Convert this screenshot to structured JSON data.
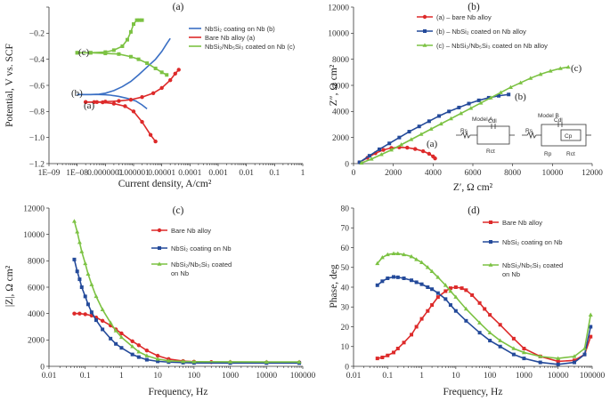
{
  "chart_data": [
    {
      "id": "a",
      "type": "line",
      "panel_label": "(a)",
      "xlabel": "Current density, A/cm²",
      "ylabel": "Potential, V vs. SCF",
      "xscale": "log",
      "xlim": [
        1e-09,
        1
      ],
      "ylim": [
        -1.2,
        0
      ],
      "xticks": [
        1e-09,
        1e-08,
        1e-07,
        1e-06,
        1e-05,
        0.0001,
        0.001,
        0.01,
        0.1,
        1
      ],
      "xtick_labels": [
        "1E–09",
        "1E–08",
        "0.0000001",
        "0.000001",
        "0.00001",
        "0.0001",
        "0.001",
        "0.01",
        "0.1",
        "1"
      ],
      "yticks": [
        -1.2,
        -1.0,
        -0.8,
        -0.6,
        -0.4,
        -0.2,
        0
      ],
      "ytick_labels": [
        "−1.2",
        "−1.0",
        "−0.8",
        "−0.6",
        "−0.4",
        "−0.2",
        ""
      ],
      "annotations": [
        "(c)",
        "(b)",
        "(a)"
      ],
      "legend": "top-right",
      "series": [
        {
          "name": "NbSi₂ coating on Nb (b)",
          "color": "#3a6fc4",
          "marker": "none",
          "x": [
            3e-06,
            2e-06,
            1.2e-06,
            6e-07,
            3e-07,
            1.5e-07,
            1e-07,
            6e-08,
            3e-08,
            1e-08
          ],
          "y": [
            -0.78,
            -0.75,
            -0.72,
            -0.7,
            -0.685,
            -0.675,
            -0.672,
            -0.67,
            -0.67,
            -0.67
          ],
          "x2": [
            1e-08,
            3e-08,
            6e-08,
            1e-07,
            2e-07,
            4e-07,
            8e-07,
            1.5e-06,
            3e-06,
            6e-06,
            1e-05,
            1.5e-05,
            2e-05
          ],
          "y2": [
            -0.67,
            -0.67,
            -0.668,
            -0.66,
            -0.64,
            -0.61,
            -0.57,
            -0.52,
            -0.46,
            -0.4,
            -0.34,
            -0.28,
            -0.24
          ]
        },
        {
          "name": "Bare Nb alloy (a)",
          "color": "#dd2a2a",
          "marker": "circle",
          "x": [
            6e-06,
            4e-06,
            2e-06,
            1e-06,
            5e-07,
            2e-07,
            8e-08,
            4e-08,
            2e-08
          ],
          "y": [
            -1.03,
            -0.98,
            -0.88,
            -0.8,
            -0.76,
            -0.74,
            -0.73,
            -0.728,
            -0.728
          ],
          "x2": [
            2e-08,
            5e-08,
            1e-07,
            3e-07,
            8e-07,
            2e-06,
            5e-06,
            1e-05,
            2e-05,
            3e-05,
            4e-05
          ],
          "y2": [
            -0.728,
            -0.728,
            -0.725,
            -0.72,
            -0.71,
            -0.69,
            -0.66,
            -0.62,
            -0.56,
            -0.51,
            -0.48
          ]
        },
        {
          "name": "NbSi₂/Nb₅Si₃ coated on Nb (c)",
          "color": "#7cc243",
          "marker": "square",
          "x": [
            1.5e-05,
            1e-05,
            6e-06,
            3e-06,
            1.5e-06,
            8e-07,
            3e-07,
            1e-07,
            3e-08,
            1e-08
          ],
          "y": [
            -0.52,
            -0.5,
            -0.47,
            -0.43,
            -0.4,
            -0.38,
            -0.36,
            -0.355,
            -0.35,
            -0.35
          ],
          "x2": [
            1e-08,
            3e-08,
            1e-07,
            2e-07,
            4e-07,
            6e-07,
            8e-07,
            1e-06,
            1.3e-06,
            1.6e-06,
            2e-06
          ],
          "y2": [
            -0.35,
            -0.35,
            -0.345,
            -0.33,
            -0.3,
            -0.25,
            -0.19,
            -0.13,
            -0.1,
            -0.1,
            -0.1
          ]
        }
      ]
    },
    {
      "id": "b",
      "type": "line",
      "panel_label": "(b)",
      "xlabel": "Z′, Ω cm²",
      "ylabel": "Z″, Ω cm²",
      "xlim": [
        0,
        12000
      ],
      "ylim": [
        0,
        12000
      ],
      "xticks": [
        0,
        2000,
        4000,
        6000,
        8000,
        10000,
        12000
      ],
      "yticks": [
        0,
        2000,
        4000,
        6000,
        8000,
        10000,
        12000
      ],
      "annotations": [
        "(a)",
        "(b)",
        "(c)"
      ],
      "legend": "top",
      "circuit": {
        "model_a": "Model A",
        "model_b": "Model B",
        "labels": [
          "Rs",
          "Cdl",
          "Rct",
          "Rs",
          "Cp",
          "Cdl",
          "Rp",
          "Rct"
        ]
      },
      "series": [
        {
          "name": "(a) – bare Nb alloy",
          "color": "#dd2a2a",
          "marker": "circle",
          "x": [
            300,
            700,
            1100,
            1500,
            1900,
            2300,
            2700,
            3100,
            3500,
            3800,
            4000,
            4100
          ],
          "y": [
            100,
            450,
            800,
            1050,
            1200,
            1250,
            1220,
            1120,
            950,
            750,
            550,
            400
          ]
        },
        {
          "name": "(b) – NbSi₂ coated on Nb alloy",
          "color": "#244a9a",
          "marker": "square",
          "x": [
            300,
            800,
            1300,
            1800,
            2300,
            2800,
            3300,
            3800,
            4300,
            4800,
            5300,
            5800,
            6300,
            6800,
            7300,
            7800
          ],
          "y": [
            100,
            600,
            1100,
            1550,
            2000,
            2450,
            2850,
            3250,
            3650,
            4000,
            4300,
            4600,
            4850,
            5050,
            5200,
            5300
          ]
        },
        {
          "name": "(c) – NbSi₂/Nb₅Si₃ coated on Nb alloy",
          "color": "#7cc243",
          "marker": "triangle",
          "x": [
            400,
            900,
            1400,
            1900,
            2400,
            2900,
            3400,
            3900,
            4400,
            4900,
            5400,
            5900,
            6400,
            6900,
            7400,
            7900,
            8400,
            8900,
            9400,
            9900,
            10400,
            10800
          ],
          "y": [
            50,
            350,
            700,
            1050,
            1450,
            1850,
            2250,
            2650,
            3050,
            3450,
            3850,
            4250,
            4650,
            5050,
            5450,
            5850,
            6200,
            6550,
            6850,
            7100,
            7300,
            7400
          ]
        }
      ]
    },
    {
      "id": "c",
      "type": "line",
      "panel_label": "(c)",
      "xlabel": "Frequency, Hz",
      "ylabel": "|Z|, Ω cm²",
      "xscale": "log",
      "xlim": [
        0.01,
        100000
      ],
      "ylim": [
        0,
        12000
      ],
      "xticks": [
        0.01,
        0.1,
        1,
        10,
        100,
        1000,
        10000,
        100000
      ],
      "xtick_labels": [
        "0.01",
        "0.1",
        "1",
        "10",
        "100",
        "1000",
        "10000",
        "100000"
      ],
      "yticks": [
        0,
        2000,
        4000,
        6000,
        8000,
        10000,
        12000
      ],
      "legend": "top-right",
      "series": [
        {
          "name": "Bare Nb alloy",
          "color": "#dd2a2a",
          "marker": "circle",
          "x": [
            0.05,
            0.07,
            0.1,
            0.15,
            0.2,
            0.3,
            0.5,
            0.7,
            1,
            2,
            3,
            5,
            10,
            20,
            50,
            100,
            300,
            1000,
            10000,
            80000
          ],
          "y": [
            4000,
            4000,
            3950,
            3850,
            3700,
            3450,
            3100,
            2800,
            2500,
            1900,
            1600,
            1200,
            800,
            550,
            400,
            350,
            320,
            310,
            300,
            300
          ]
        },
        {
          "name": "NbSi₂ coating on Nb",
          "color": "#244a9a",
          "marker": "square",
          "x": [
            0.05,
            0.06,
            0.07,
            0.08,
            0.1,
            0.12,
            0.15,
            0.2,
            0.3,
            0.5,
            0.7,
            1,
            2,
            3,
            5,
            10,
            20,
            50,
            100,
            1000,
            10000,
            80000
          ],
          "y": [
            8100,
            7200,
            6600,
            6000,
            5300,
            4700,
            4100,
            3500,
            2800,
            2100,
            1700,
            1400,
            900,
            700,
            500,
            380,
            320,
            280,
            260,
            250,
            250,
            250
          ]
        },
        {
          "name": "NbSi₂/Nb₅Si₃ coated on Nb",
          "color": "#7cc243",
          "marker": "triangle",
          "x": [
            0.05,
            0.06,
            0.07,
            0.08,
            0.1,
            0.12,
            0.15,
            0.2,
            0.3,
            0.5,
            0.7,
            1,
            2,
            3,
            5,
            10,
            20,
            50,
            100,
            1000,
            10000,
            80000
          ],
          "y": [
            11000,
            10200,
            9400,
            8700,
            7800,
            7000,
            6200,
            5300,
            4300,
            3300,
            2700,
            2200,
            1500,
            1100,
            800,
            550,
            420,
            370,
            350,
            340,
            330,
            330
          ]
        }
      ]
    },
    {
      "id": "d",
      "type": "line",
      "panel_label": "(d)",
      "xlabel": "Frequency, Hz",
      "ylabel": "Phase, deg",
      "xscale": "log",
      "xlim": [
        0.01,
        100000
      ],
      "ylim": [
        0,
        80
      ],
      "xticks": [
        0.01,
        0.1,
        1,
        10,
        100,
        1000,
        10000,
        100000
      ],
      "xtick_labels": [
        "0.01",
        "0.1",
        "1",
        "10",
        "100",
        "1000",
        "10000",
        "100000"
      ],
      "yticks": [
        0,
        10,
        20,
        30,
        40,
        50,
        60,
        70,
        80
      ],
      "legend": "top-right",
      "series": [
        {
          "name": "Bare Nb alloy",
          "color": "#dd2a2a",
          "marker": "square",
          "x": [
            0.05,
            0.07,
            0.1,
            0.15,
            0.2,
            0.3,
            0.5,
            0.7,
            1,
            1.5,
            2,
            3,
            5,
            7,
            10,
            15,
            20,
            30,
            50,
            70,
            100,
            200,
            500,
            1000,
            3000,
            10000,
            30000,
            60000,
            90000
          ],
          "y": [
            4,
            4.5,
            5.5,
            7,
            9,
            12,
            16,
            20,
            24,
            28,
            31,
            35,
            38,
            39.5,
            40,
            39.5,
            38.5,
            36,
            32,
            29,
            26,
            21,
            14,
            9,
            5,
            2.5,
            3,
            6,
            15
          ]
        },
        {
          "name": "NbSi₂ coating on Nb",
          "color": "#244a9a",
          "marker": "square",
          "x": [
            0.05,
            0.07,
            0.1,
            0.15,
            0.2,
            0.3,
            0.5,
            0.7,
            1,
            1.5,
            2,
            3,
            5,
            7,
            10,
            20,
            50,
            100,
            200,
            500,
            1000,
            3000,
            10000,
            30000,
            60000,
            90000
          ],
          "y": [
            41,
            43,
            44.5,
            45.2,
            45,
            44.5,
            43.5,
            42.5,
            41.5,
            40,
            39,
            37,
            34,
            31,
            28,
            23,
            17,
            13,
            10,
            6,
            4,
            2,
            1,
            2,
            6,
            20
          ]
        },
        {
          "name": "NbSi₂/Nb₅Si₃ coated on Nb",
          "color": "#7cc243",
          "marker": "triangle",
          "x": [
            0.05,
            0.07,
            0.1,
            0.15,
            0.2,
            0.3,
            0.5,
            0.7,
            1,
            1.5,
            2,
            3,
            5,
            7,
            10,
            20,
            50,
            100,
            200,
            500,
            1000,
            3000,
            10000,
            30000,
            60000,
            90000
          ],
          "y": [
            52,
            55,
            56.5,
            57,
            57,
            56.5,
            55.5,
            54,
            52.5,
            50,
            48,
            45,
            41,
            38,
            35,
            29,
            22,
            17,
            13,
            9,
            7,
            5,
            4,
            5,
            9,
            26
          ]
        }
      ]
    }
  ]
}
